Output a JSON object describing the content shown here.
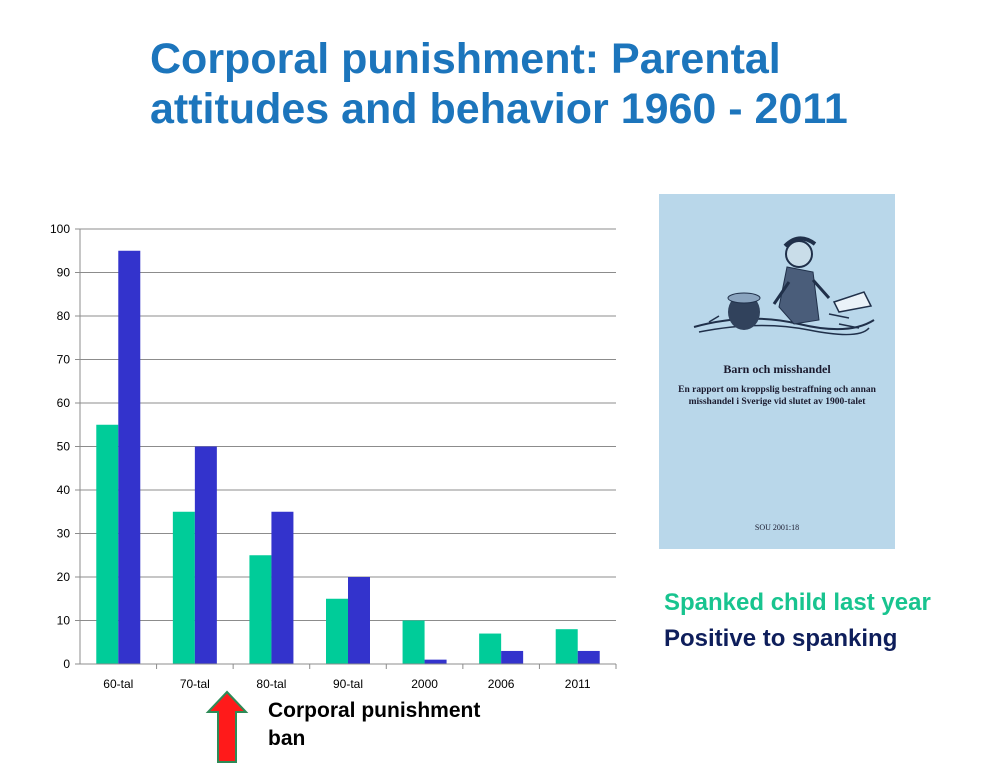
{
  "slide": {
    "title_line1": "Corporal punishment: Parental",
    "title_line2": "attitudes and behavior  1960 - 2011"
  },
  "chart_data": {
    "type": "bar",
    "categories": [
      "60-tal",
      "70-tal",
      "80-tal",
      "90-tal",
      "2000",
      "2006",
      "2011"
    ],
    "series": [
      {
        "name": "Spanked child last year",
        "color": "#00cc99",
        "values": [
          55,
          35,
          25,
          15,
          10,
          7,
          8
        ]
      },
      {
        "name": "Positive to spanking",
        "color": "#3333cc",
        "values": [
          95,
          50,
          35,
          20,
          1,
          3,
          3
        ]
      }
    ],
    "ylim": [
      0,
      100
    ],
    "yticks": [
      "0",
      "10",
      "20",
      "30",
      "40",
      "50",
      "60",
      "70",
      "80",
      "90",
      "100"
    ],
    "grid": true,
    "legend_position": "right"
  },
  "annotation": {
    "arrow_color": "#ff1a1a",
    "arrow_border": "#2e8b57",
    "label_line1": "Corporal punishment",
    "label_line2": "ban"
  },
  "book": {
    "title": "Barn och misshandel",
    "subtitle_line1": "En rapport om kroppslig bestraffning och annan",
    "subtitle_line2": "misshandel i Sverige vid slutet av 1900-talet",
    "code": "SOU 2001:18"
  },
  "legend": {
    "item1": "Spanked child last year",
    "item2": "Positive to spanking"
  }
}
